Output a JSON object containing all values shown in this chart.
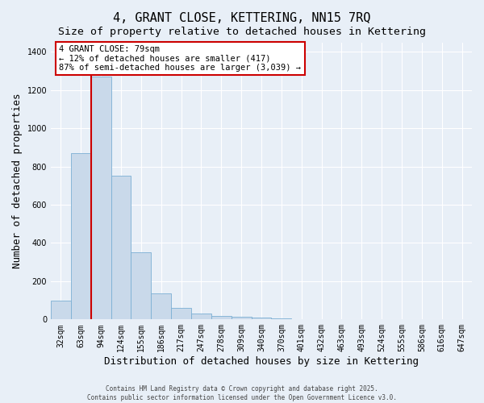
{
  "title": "4, GRANT CLOSE, KETTERING, NN15 7RQ",
  "subtitle": "Size of property relative to detached houses in Kettering",
  "xlabel": "Distribution of detached houses by size in Kettering",
  "ylabel": "Number of detached properties",
  "bar_labels": [
    "32sqm",
    "63sqm",
    "94sqm",
    "124sqm",
    "155sqm",
    "186sqm",
    "217sqm",
    "247sqm",
    "278sqm",
    "309sqm",
    "340sqm",
    "370sqm",
    "401sqm",
    "432sqm",
    "463sqm",
    "493sqm",
    "524sqm",
    "555sqm",
    "586sqm",
    "616sqm",
    "647sqm"
  ],
  "bar_heights": [
    100,
    870,
    1270,
    750,
    350,
    135,
    60,
    30,
    20,
    15,
    10,
    5,
    3,
    2,
    1,
    0,
    0,
    0,
    0,
    0,
    0
  ],
  "bar_color": "#c9d9ea",
  "bar_edge_color": "#7bafd4",
  "red_line_x": 1.5,
  "annotation_text": "4 GRANT CLOSE: 79sqm\n← 12% of detached houses are smaller (417)\n87% of semi-detached houses are larger (3,039) →",
  "annotation_box_color": "#ffffff",
  "annotation_edge_color": "#cc0000",
  "ylim": [
    0,
    1450
  ],
  "title_fontsize": 11,
  "subtitle_fontsize": 9.5,
  "tick_fontsize": 7,
  "ylabel_fontsize": 9,
  "xlabel_fontsize": 9,
  "footer_line1": "Contains HM Land Registry data © Crown copyright and database right 2025.",
  "footer_line2": "Contains public sector information licensed under the Open Government Licence v3.0.",
  "background_color": "#e8eff7",
  "plot_background_color": "#e8eff7",
  "grid_color": "#ffffff",
  "red_line_color": "#cc0000",
  "yticks": [
    0,
    200,
    400,
    600,
    800,
    1000,
    1200,
    1400
  ]
}
